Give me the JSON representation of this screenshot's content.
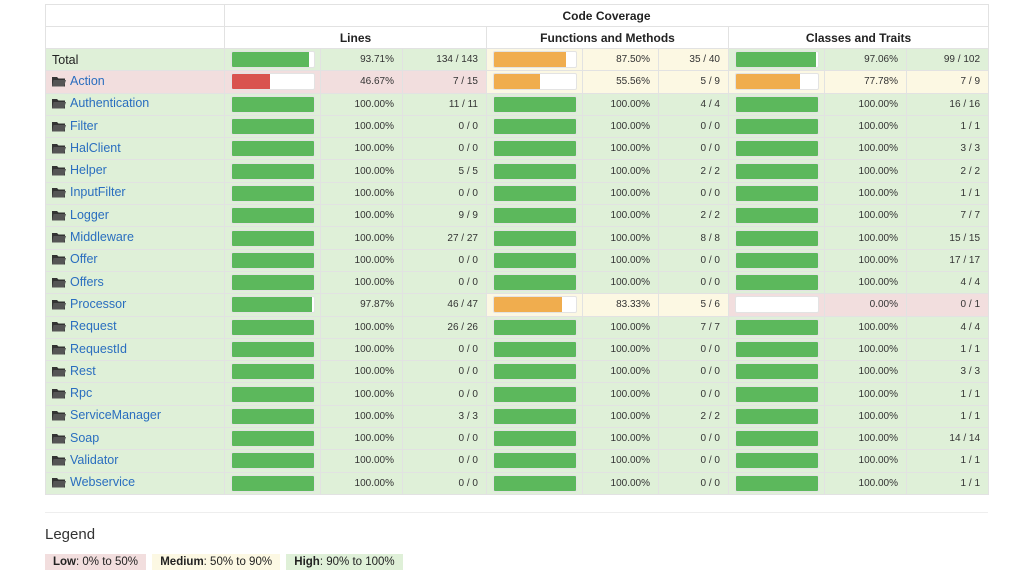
{
  "header": {
    "code_coverage": "Code Coverage",
    "lines": "Lines",
    "functions": "Functions and Methods",
    "classes": "Classes and Traits"
  },
  "colors": {
    "high_bg": "#dff0d8",
    "medium_bg": "#fcf8e3",
    "low_bg": "#f2dede",
    "high_fill": "#5cb85c",
    "medium_fill": "#f0ad4e",
    "low_fill": "#d9534f",
    "link": "#2a6ebf"
  },
  "rows": [
    {
      "name": "Total",
      "link": false,
      "lines_frac": 0.9371,
      "lines_pct": "93.71%",
      "lines_cnt": "134 / 143",
      "lines_level": "high",
      "fn_frac": 0.875,
      "fn_pct": "87.50%",
      "fn_cnt": "35 / 40",
      "fn_level": "medium",
      "cls_frac": 0.9706,
      "cls_pct": "97.06%",
      "cls_cnt": "99 / 102",
      "cls_level": "high"
    },
    {
      "name": "Action",
      "link": true,
      "lines_frac": 0.4667,
      "lines_pct": "46.67%",
      "lines_cnt": "7 / 15",
      "lines_level": "low",
      "fn_frac": 0.5556,
      "fn_pct": "55.56%",
      "fn_cnt": "5 / 9",
      "fn_level": "medium",
      "cls_frac": 0.7778,
      "cls_pct": "77.78%",
      "cls_cnt": "7 / 9",
      "cls_level": "medium"
    },
    {
      "name": "Authentication",
      "link": true,
      "lines_frac": 1,
      "lines_pct": "100.00%",
      "lines_cnt": "11 / 11",
      "lines_level": "high",
      "fn_frac": 1,
      "fn_pct": "100.00%",
      "fn_cnt": "4 / 4",
      "fn_level": "high",
      "cls_frac": 1,
      "cls_pct": "100.00%",
      "cls_cnt": "16 / 16",
      "cls_level": "high"
    },
    {
      "name": "Filter",
      "link": true,
      "lines_frac": 1,
      "lines_pct": "100.00%",
      "lines_cnt": "0 / 0",
      "lines_level": "high",
      "fn_frac": 1,
      "fn_pct": "100.00%",
      "fn_cnt": "0 / 0",
      "fn_level": "high",
      "cls_frac": 1,
      "cls_pct": "100.00%",
      "cls_cnt": "1 / 1",
      "cls_level": "high"
    },
    {
      "name": "HalClient",
      "link": true,
      "lines_frac": 1,
      "lines_pct": "100.00%",
      "lines_cnt": "0 / 0",
      "lines_level": "high",
      "fn_frac": 1,
      "fn_pct": "100.00%",
      "fn_cnt": "0 / 0",
      "fn_level": "high",
      "cls_frac": 1,
      "cls_pct": "100.00%",
      "cls_cnt": "3 / 3",
      "cls_level": "high"
    },
    {
      "name": "Helper",
      "link": true,
      "lines_frac": 1,
      "lines_pct": "100.00%",
      "lines_cnt": "5 / 5",
      "lines_level": "high",
      "fn_frac": 1,
      "fn_pct": "100.00%",
      "fn_cnt": "2 / 2",
      "fn_level": "high",
      "cls_frac": 1,
      "cls_pct": "100.00%",
      "cls_cnt": "2 / 2",
      "cls_level": "high"
    },
    {
      "name": "InputFilter",
      "link": true,
      "lines_frac": 1,
      "lines_pct": "100.00%",
      "lines_cnt": "0 / 0",
      "lines_level": "high",
      "fn_frac": 1,
      "fn_pct": "100.00%",
      "fn_cnt": "0 / 0",
      "fn_level": "high",
      "cls_frac": 1,
      "cls_pct": "100.00%",
      "cls_cnt": "1 / 1",
      "cls_level": "high"
    },
    {
      "name": "Logger",
      "link": true,
      "lines_frac": 1,
      "lines_pct": "100.00%",
      "lines_cnt": "9 / 9",
      "lines_level": "high",
      "fn_frac": 1,
      "fn_pct": "100.00%",
      "fn_cnt": "2 / 2",
      "fn_level": "high",
      "cls_frac": 1,
      "cls_pct": "100.00%",
      "cls_cnt": "7 / 7",
      "cls_level": "high"
    },
    {
      "name": "Middleware",
      "link": true,
      "lines_frac": 1,
      "lines_pct": "100.00%",
      "lines_cnt": "27 / 27",
      "lines_level": "high",
      "fn_frac": 1,
      "fn_pct": "100.00%",
      "fn_cnt": "8 / 8",
      "fn_level": "high",
      "cls_frac": 1,
      "cls_pct": "100.00%",
      "cls_cnt": "15 / 15",
      "cls_level": "high"
    },
    {
      "name": "Offer",
      "link": true,
      "lines_frac": 1,
      "lines_pct": "100.00%",
      "lines_cnt": "0 / 0",
      "lines_level": "high",
      "fn_frac": 1,
      "fn_pct": "100.00%",
      "fn_cnt": "0 / 0",
      "fn_level": "high",
      "cls_frac": 1,
      "cls_pct": "100.00%",
      "cls_cnt": "17 / 17",
      "cls_level": "high"
    },
    {
      "name": "Offers",
      "link": true,
      "lines_frac": 1,
      "lines_pct": "100.00%",
      "lines_cnt": "0 / 0",
      "lines_level": "high",
      "fn_frac": 1,
      "fn_pct": "100.00%",
      "fn_cnt": "0 / 0",
      "fn_level": "high",
      "cls_frac": 1,
      "cls_pct": "100.00%",
      "cls_cnt": "4 / 4",
      "cls_level": "high"
    },
    {
      "name": "Processor",
      "link": true,
      "lines_frac": 0.9787,
      "lines_pct": "97.87%",
      "lines_cnt": "46 / 47",
      "lines_level": "high",
      "fn_frac": 0.8333,
      "fn_pct": "83.33%",
      "fn_cnt": "5 / 6",
      "fn_level": "medium",
      "cls_frac": 0,
      "cls_pct": "0.00%",
      "cls_cnt": "0 / 1",
      "cls_level": "low"
    },
    {
      "name": "Request",
      "link": true,
      "lines_frac": 1,
      "lines_pct": "100.00%",
      "lines_cnt": "26 / 26",
      "lines_level": "high",
      "fn_frac": 1,
      "fn_pct": "100.00%",
      "fn_cnt": "7 / 7",
      "fn_level": "high",
      "cls_frac": 1,
      "cls_pct": "100.00%",
      "cls_cnt": "4 / 4",
      "cls_level": "high"
    },
    {
      "name": "RequestId",
      "link": true,
      "lines_frac": 1,
      "lines_pct": "100.00%",
      "lines_cnt": "0 / 0",
      "lines_level": "high",
      "fn_frac": 1,
      "fn_pct": "100.00%",
      "fn_cnt": "0 / 0",
      "fn_level": "high",
      "cls_frac": 1,
      "cls_pct": "100.00%",
      "cls_cnt": "1 / 1",
      "cls_level": "high"
    },
    {
      "name": "Rest",
      "link": true,
      "lines_frac": 1,
      "lines_pct": "100.00%",
      "lines_cnt": "0 / 0",
      "lines_level": "high",
      "fn_frac": 1,
      "fn_pct": "100.00%",
      "fn_cnt": "0 / 0",
      "fn_level": "high",
      "cls_frac": 1,
      "cls_pct": "100.00%",
      "cls_cnt": "3 / 3",
      "cls_level": "high"
    },
    {
      "name": "Rpc",
      "link": true,
      "lines_frac": 1,
      "lines_pct": "100.00%",
      "lines_cnt": "0 / 0",
      "lines_level": "high",
      "fn_frac": 1,
      "fn_pct": "100.00%",
      "fn_cnt": "0 / 0",
      "fn_level": "high",
      "cls_frac": 1,
      "cls_pct": "100.00%",
      "cls_cnt": "1 / 1",
      "cls_level": "high"
    },
    {
      "name": "ServiceManager",
      "link": true,
      "lines_frac": 1,
      "lines_pct": "100.00%",
      "lines_cnt": "3 / 3",
      "lines_level": "high",
      "fn_frac": 1,
      "fn_pct": "100.00%",
      "fn_cnt": "2 / 2",
      "fn_level": "high",
      "cls_frac": 1,
      "cls_pct": "100.00%",
      "cls_cnt": "1 / 1",
      "cls_level": "high"
    },
    {
      "name": "Soap",
      "link": true,
      "lines_frac": 1,
      "lines_pct": "100.00%",
      "lines_cnt": "0 / 0",
      "lines_level": "high",
      "fn_frac": 1,
      "fn_pct": "100.00%",
      "fn_cnt": "0 / 0",
      "fn_level": "high",
      "cls_frac": 1,
      "cls_pct": "100.00%",
      "cls_cnt": "14 / 14",
      "cls_level": "high"
    },
    {
      "name": "Validator",
      "link": true,
      "lines_frac": 1,
      "lines_pct": "100.00%",
      "lines_cnt": "0 / 0",
      "lines_level": "high",
      "fn_frac": 1,
      "fn_pct": "100.00%",
      "fn_cnt": "0 / 0",
      "fn_level": "high",
      "cls_frac": 1,
      "cls_pct": "100.00%",
      "cls_cnt": "1 / 1",
      "cls_level": "high"
    },
    {
      "name": "Webservice",
      "link": true,
      "lines_frac": 1,
      "lines_pct": "100.00%",
      "lines_cnt": "0 / 0",
      "lines_level": "high",
      "fn_frac": 1,
      "fn_pct": "100.00%",
      "fn_cnt": "0 / 0",
      "fn_level": "high",
      "cls_frac": 1,
      "cls_pct": "100.00%",
      "cls_cnt": "1 / 1",
      "cls_level": "high"
    }
  ],
  "legend": {
    "title": "Legend",
    "low_label": "Low",
    "low_range": ": 0% to 50%",
    "medium_label": "Medium",
    "medium_range": ": 50% to 90%",
    "high_label": "High",
    "high_range": ": 90% to 100%"
  }
}
